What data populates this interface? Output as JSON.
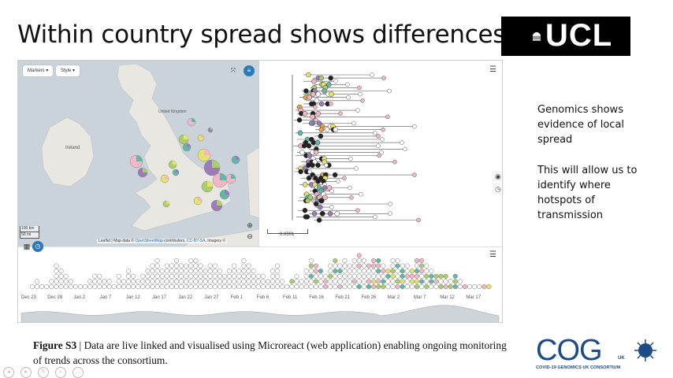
{
  "slide": {
    "title": "Within country spread shows differences",
    "logo_text": "UCL"
  },
  "map": {
    "markers_button": "Markers",
    "style_button": "Style",
    "labels": {
      "ireland": "Ireland",
      "united_kingdom": "United Kingdom"
    },
    "scale": {
      "km": "100 km",
      "mi": "50 mi"
    },
    "attribution": {
      "pre": "Leaflet | Map data © ",
      "osm": "OpenStreetMap",
      "mid": " contributors, ",
      "license": "CC-BY-SA",
      "post": ", Imagery ©"
    },
    "colors": {
      "sea": "#c9d3d9",
      "land": "#e9e7e2"
    }
  },
  "tree": {
    "scale_label": "0.0001"
  },
  "timeline": {
    "ticks": [
      "Dec 23",
      "Dec 28",
      "Jan 2",
      "Jan 7",
      "Jan 12",
      "Jan 17",
      "Jan 22",
      "Jan 27",
      "Feb 1",
      "Feb 6",
      "Feb 11",
      "Feb 16",
      "Feb 21",
      "Feb 26",
      "Mar 2",
      "Mar 7",
      "Mar 12",
      "Mar 17"
    ],
    "column_heights": [
      1,
      2,
      1,
      1,
      2,
      5,
      4,
      3,
      2,
      1,
      1,
      1,
      2,
      3,
      3,
      2,
      2,
      1,
      3,
      2,
      4,
      3,
      2,
      3,
      4,
      5,
      6,
      4,
      5,
      5,
      6,
      5,
      5,
      6,
      6,
      5,
      4,
      5,
      5,
      4,
      3,
      4,
      5,
      4,
      6,
      5,
      4,
      3,
      3,
      2,
      4,
      5,
      2,
      1,
      2,
      3,
      2,
      4,
      6,
      5,
      4,
      3,
      5,
      6,
      5,
      6,
      5,
      6,
      7,
      6,
      5,
      6,
      6,
      5,
      4,
      6,
      6,
      5,
      5,
      4,
      6,
      6,
      5,
      4,
      3,
      3,
      3,
      2,
      3,
      2,
      1,
      1,
      1,
      1,
      1,
      1
    ]
  },
  "side_text": {
    "p1": "Genomics shows evidence of local spread",
    "p2": "This will allow us to identify where hotspots of transmission"
  },
  "caption": {
    "label": "Figure S3",
    "text": " | Data are live linked and visualised using Microreact (web application) enabling ongoing monitoring of trends across the consortium."
  },
  "cog_logo": {
    "letters": "COG",
    "uk": "UK",
    "consortium": "COVID-19 GENOMICS UK CONSORTIUM"
  },
  "colors": {
    "pink": "#f2b6c6",
    "green": "#a8cf6a",
    "teal": "#5fb8a8",
    "yellow": "#e7e36a",
    "purple": "#9b7bb8",
    "orange": "#e6a24a",
    "microreact_blue": "#2a78b8",
    "cog_blue": "#1e4a86"
  }
}
